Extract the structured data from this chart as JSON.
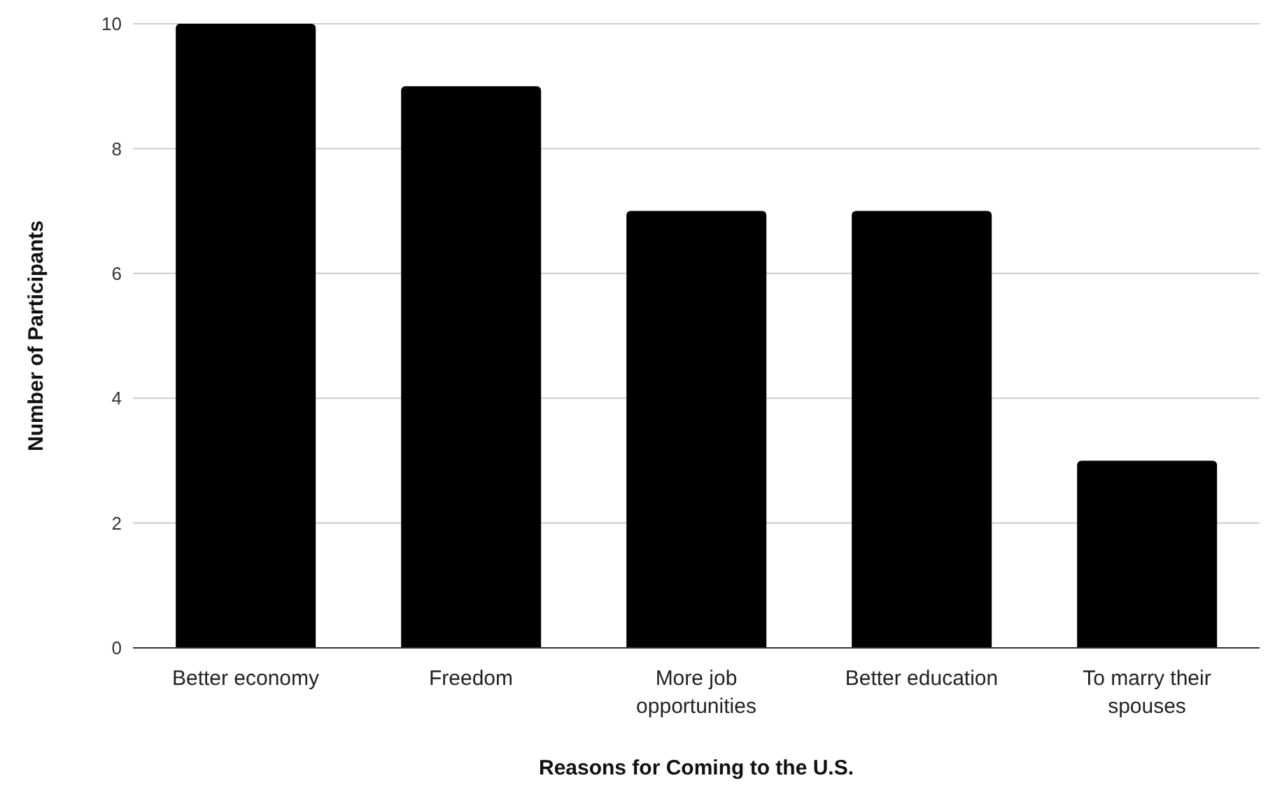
{
  "chart_data": {
    "type": "bar",
    "categories": [
      "Better economy",
      "Freedom",
      "More job opportunities",
      "Better education",
      "To marry their spouses"
    ],
    "values": [
      10,
      9,
      7,
      7,
      3
    ],
    "color": "#000000",
    "xlabel": "Reasons for Coming to the U.S.",
    "ylabel": "Number of Participants",
    "ylim": [
      0,
      10
    ],
    "yticks": [
      0,
      2,
      4,
      6,
      8,
      10
    ],
    "grid": "y"
  }
}
